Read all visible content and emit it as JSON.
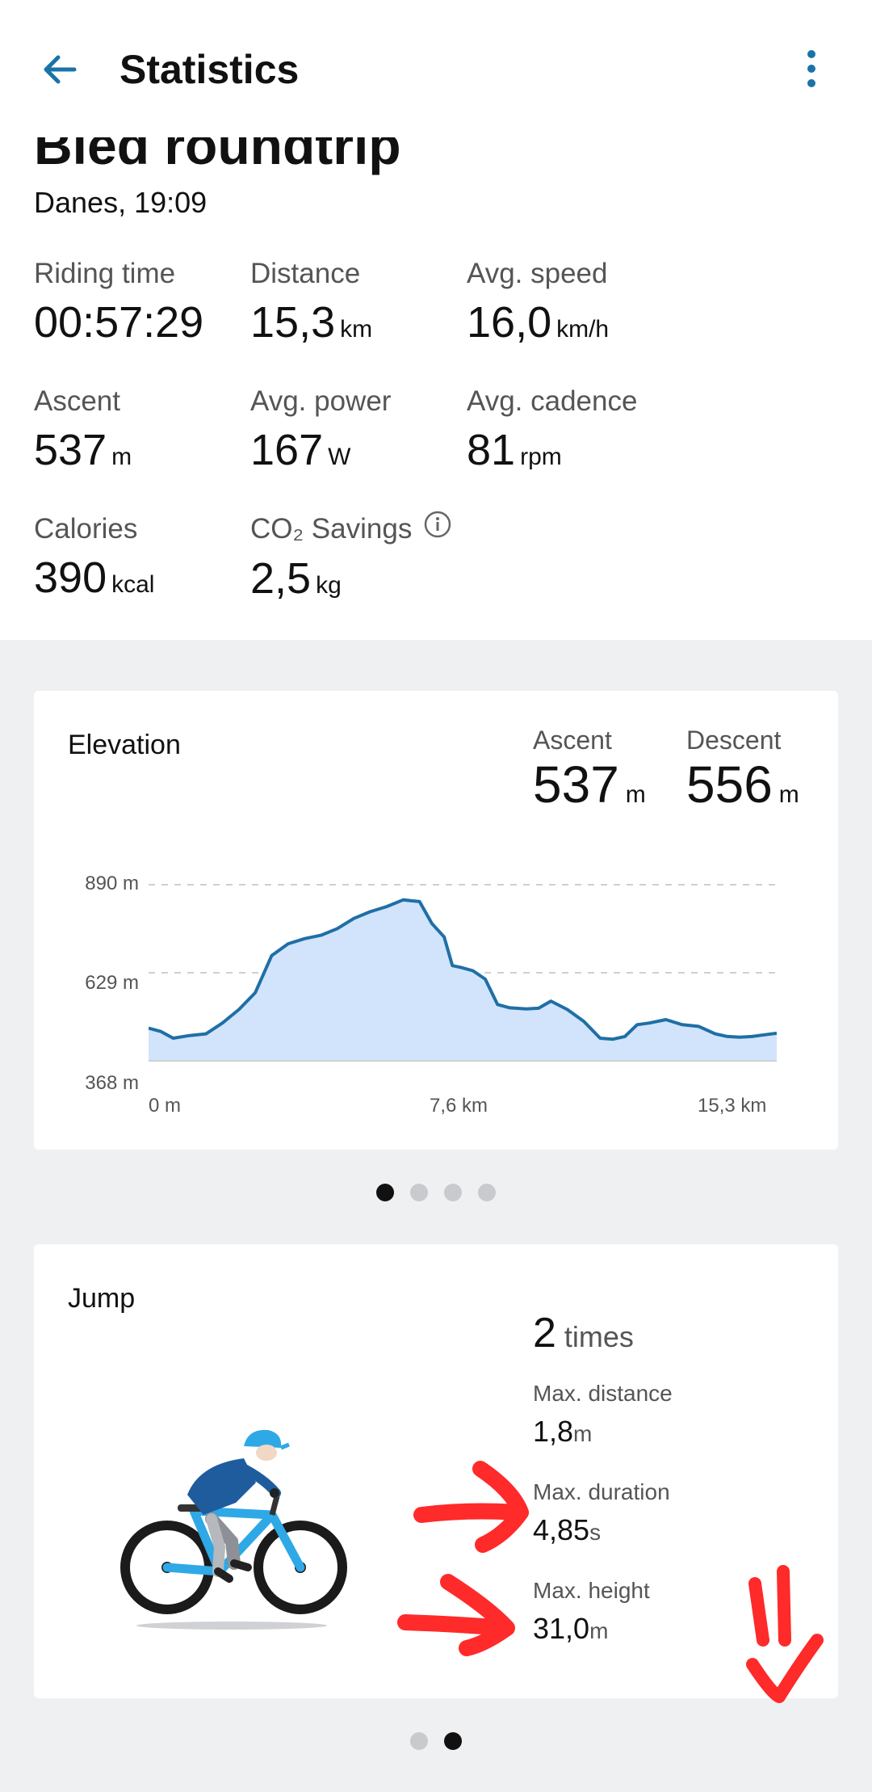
{
  "appbar": {
    "title": "Statistics"
  },
  "ride": {
    "title": "Bled roundtrip",
    "date": "Danes, 19:09"
  },
  "stats": [
    {
      "label": "Riding time",
      "value": "00:57:29",
      "unit": ""
    },
    {
      "label": "Distance",
      "value": "15,3",
      "unit": "km"
    },
    {
      "label": "Avg. speed",
      "value": "16,0",
      "unit": "km/h"
    },
    {
      "label": "Ascent",
      "value": "537",
      "unit": "m"
    },
    {
      "label": "Avg. power",
      "value": "167",
      "unit": "W"
    },
    {
      "label": "Avg. cadence",
      "value": "81",
      "unit": "rpm"
    },
    {
      "label": "Calories",
      "value": "390",
      "unit": "kcal"
    },
    {
      "label": "CO₂ Savings",
      "value": "2,5",
      "unit": "kg"
    }
  ],
  "elevation_card": {
    "title": "Elevation",
    "ascent": {
      "label": "Ascent",
      "value": "537",
      "unit": "m"
    },
    "descent": {
      "label": "Descent",
      "value": "556",
      "unit": "m"
    }
  },
  "chart_data": {
    "type": "area",
    "title": "Elevation",
    "xlabel": "",
    "ylabel": "",
    "y_ticks": [
      "890 m",
      "629 m",
      "368 m"
    ],
    "x_ticks": [
      "0 m",
      "7,6 km",
      "15,3 km"
    ],
    "ylim": [
      368,
      890
    ],
    "xlim": [
      0,
      15.3
    ],
    "grid": true,
    "fill_color": "#d2e4fb",
    "line_color": "#1f6fa6",
    "x": [
      0,
      0.3,
      0.6,
      1.0,
      1.4,
      1.8,
      2.2,
      2.6,
      3.0,
      3.4,
      3.8,
      4.2,
      4.6,
      5.0,
      5.4,
      5.8,
      6.2,
      6.6,
      6.9,
      7.2,
      7.4,
      7.6,
      7.9,
      8.2,
      8.5,
      8.8,
      9.2,
      9.5,
      9.8,
      10.2,
      10.6,
      11.0,
      11.3,
      11.6,
      11.9,
      12.2,
      12.6,
      13.0,
      13.4,
      13.8,
      14.1,
      14.4,
      14.7,
      15.0,
      15.3
    ],
    "y": [
      465,
      455,
      435,
      443,
      448,
      480,
      520,
      570,
      680,
      715,
      730,
      740,
      760,
      790,
      810,
      825,
      845,
      840,
      775,
      735,
      650,
      645,
      635,
      610,
      535,
      525,
      522,
      524,
      545,
      520,
      485,
      435,
      432,
      440,
      475,
      480,
      490,
      475,
      470,
      448,
      440,
      438,
      440,
      445,
      450
    ]
  },
  "elevation_pager": {
    "count": 4,
    "active": 0
  },
  "jump_card": {
    "title": "Jump",
    "count": "2",
    "count_unit": "times",
    "max_distance": {
      "label": "Max. distance",
      "value": "1,8",
      "unit": "m"
    },
    "max_duration": {
      "label": "Max. duration",
      "value": "4,85",
      "unit": "s"
    },
    "max_height": {
      "label": "Max. height",
      "value": "31,0",
      "unit": "m"
    }
  },
  "jump_pager": {
    "count": 2,
    "active": 1
  },
  "colors": {
    "accent": "#1a73a8",
    "annotation": "#ff2a2a",
    "bike": "#2fa8e6"
  }
}
